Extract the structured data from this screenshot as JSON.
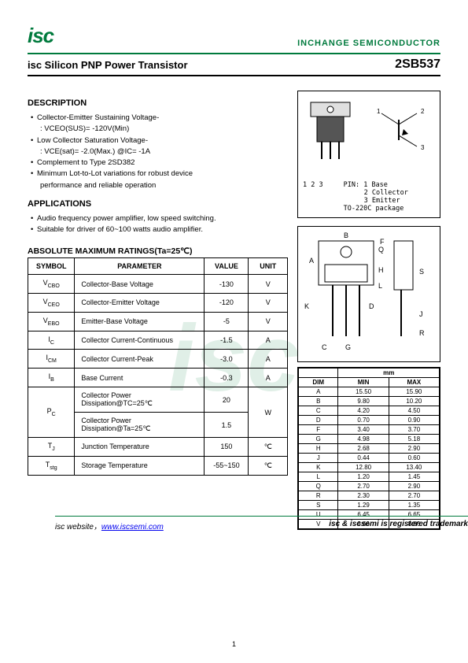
{
  "header": {
    "logo": "isc",
    "company": "INCHANGE SEMICONDUCTOR",
    "title": "isc Silicon PNP Power Transistor",
    "part": "2SB537"
  },
  "description": {
    "heading": "DESCRIPTION",
    "items": [
      "Collector-Emitter Sustaining Voltage-",
      ": VCEO(SUS)= -120V(Min)",
      "Low Collector Saturation Voltage-",
      ": VCE(sat)= -2.0(Max.) @IC= -1A",
      "Complement to Type 2SD382",
      "Minimum Lot-to-Lot variations for robust device",
      "performance and reliable operation"
    ]
  },
  "applications": {
    "heading": "APPLICATIONS",
    "items": [
      "Audio frequency power amplifier, low speed switching.",
      "Suitable for driver of 60~100 watts audio amplifier."
    ]
  },
  "ratings": {
    "heading": "ABSOLUTE MAXIMUM RATINGS(Ta=25℃)",
    "cols": [
      "SYMBOL",
      "PARAMETER",
      "VALUE",
      "UNIT"
    ],
    "rows": [
      {
        "sym": "V",
        "sub": "CBO",
        "param": "Collector-Base Voltage",
        "value": "-130",
        "unit": "V"
      },
      {
        "sym": "V",
        "sub": "CEO",
        "param": "Collector-Emitter Voltage",
        "value": "-120",
        "unit": "V"
      },
      {
        "sym": "V",
        "sub": "EBO",
        "param": "Emitter-Base Voltage",
        "value": "-5",
        "unit": "V"
      },
      {
        "sym": "I",
        "sub": "C",
        "param": "Collector Current-Continuous",
        "value": "-1.5",
        "unit": "A"
      },
      {
        "sym": "I",
        "sub": "CM",
        "param": "Collector Current-Peak",
        "value": "-3.0",
        "unit": "A"
      },
      {
        "sym": "I",
        "sub": "B",
        "param": "Base Current",
        "value": "-0.3",
        "unit": "A"
      },
      {
        "sym": "P",
        "sub": "C",
        "param": "Collector Power Dissipation@TC=25℃",
        "value": "20",
        "unit": "W",
        "rowspan_sym": 2,
        "rowspan_unit": 2
      },
      {
        "sym": "",
        "sub": "",
        "param": "Collector Power Dissipation@Ta=25℃",
        "value": "1.5",
        "unit": ""
      },
      {
        "sym": "T",
        "sub": "J",
        "param": "Junction Temperature",
        "value": "150",
        "unit": "℃"
      },
      {
        "sym": "T",
        "sub": "stg",
        "param": "Storage Temperature",
        "value": "-55~150",
        "unit": "℃"
      }
    ]
  },
  "package": {
    "pin_label": "PIN:",
    "pins": [
      "1 Base",
      "2 Collector",
      "3 Emitter"
    ],
    "pkg_name": "TO-220C package",
    "pin_nums": "1 2 3"
  },
  "dims": {
    "head_mm": "mm",
    "cols": [
      "DIM",
      "MIN",
      "MAX"
    ],
    "rows": [
      [
        "A",
        "15.50",
        "15.90"
      ],
      [
        "B",
        "9.80",
        "10.20"
      ],
      [
        "C",
        "4.20",
        "4.50"
      ],
      [
        "D",
        "0.70",
        "0.90"
      ],
      [
        "F",
        "3.40",
        "3.70"
      ],
      [
        "G",
        "4.98",
        "5.18"
      ],
      [
        "H",
        "2.68",
        "2.90"
      ],
      [
        "J",
        "0.44",
        "0.60"
      ],
      [
        "K",
        "12.80",
        "13.40"
      ],
      [
        "L",
        "1.20",
        "1.45"
      ],
      [
        "Q",
        "2.70",
        "2.90"
      ],
      [
        "R",
        "2.30",
        "2.70"
      ],
      [
        "S",
        "1.29",
        "1.35"
      ],
      [
        "U",
        "6.45",
        "6.65"
      ],
      [
        "V",
        "8.66",
        "8.86"
      ]
    ]
  },
  "footer": {
    "left_prefix": "isc website，",
    "url": "www.iscsemi.com",
    "right": "isc & iscsemi is registered trademark",
    "page": "1"
  },
  "watermark": "isc"
}
